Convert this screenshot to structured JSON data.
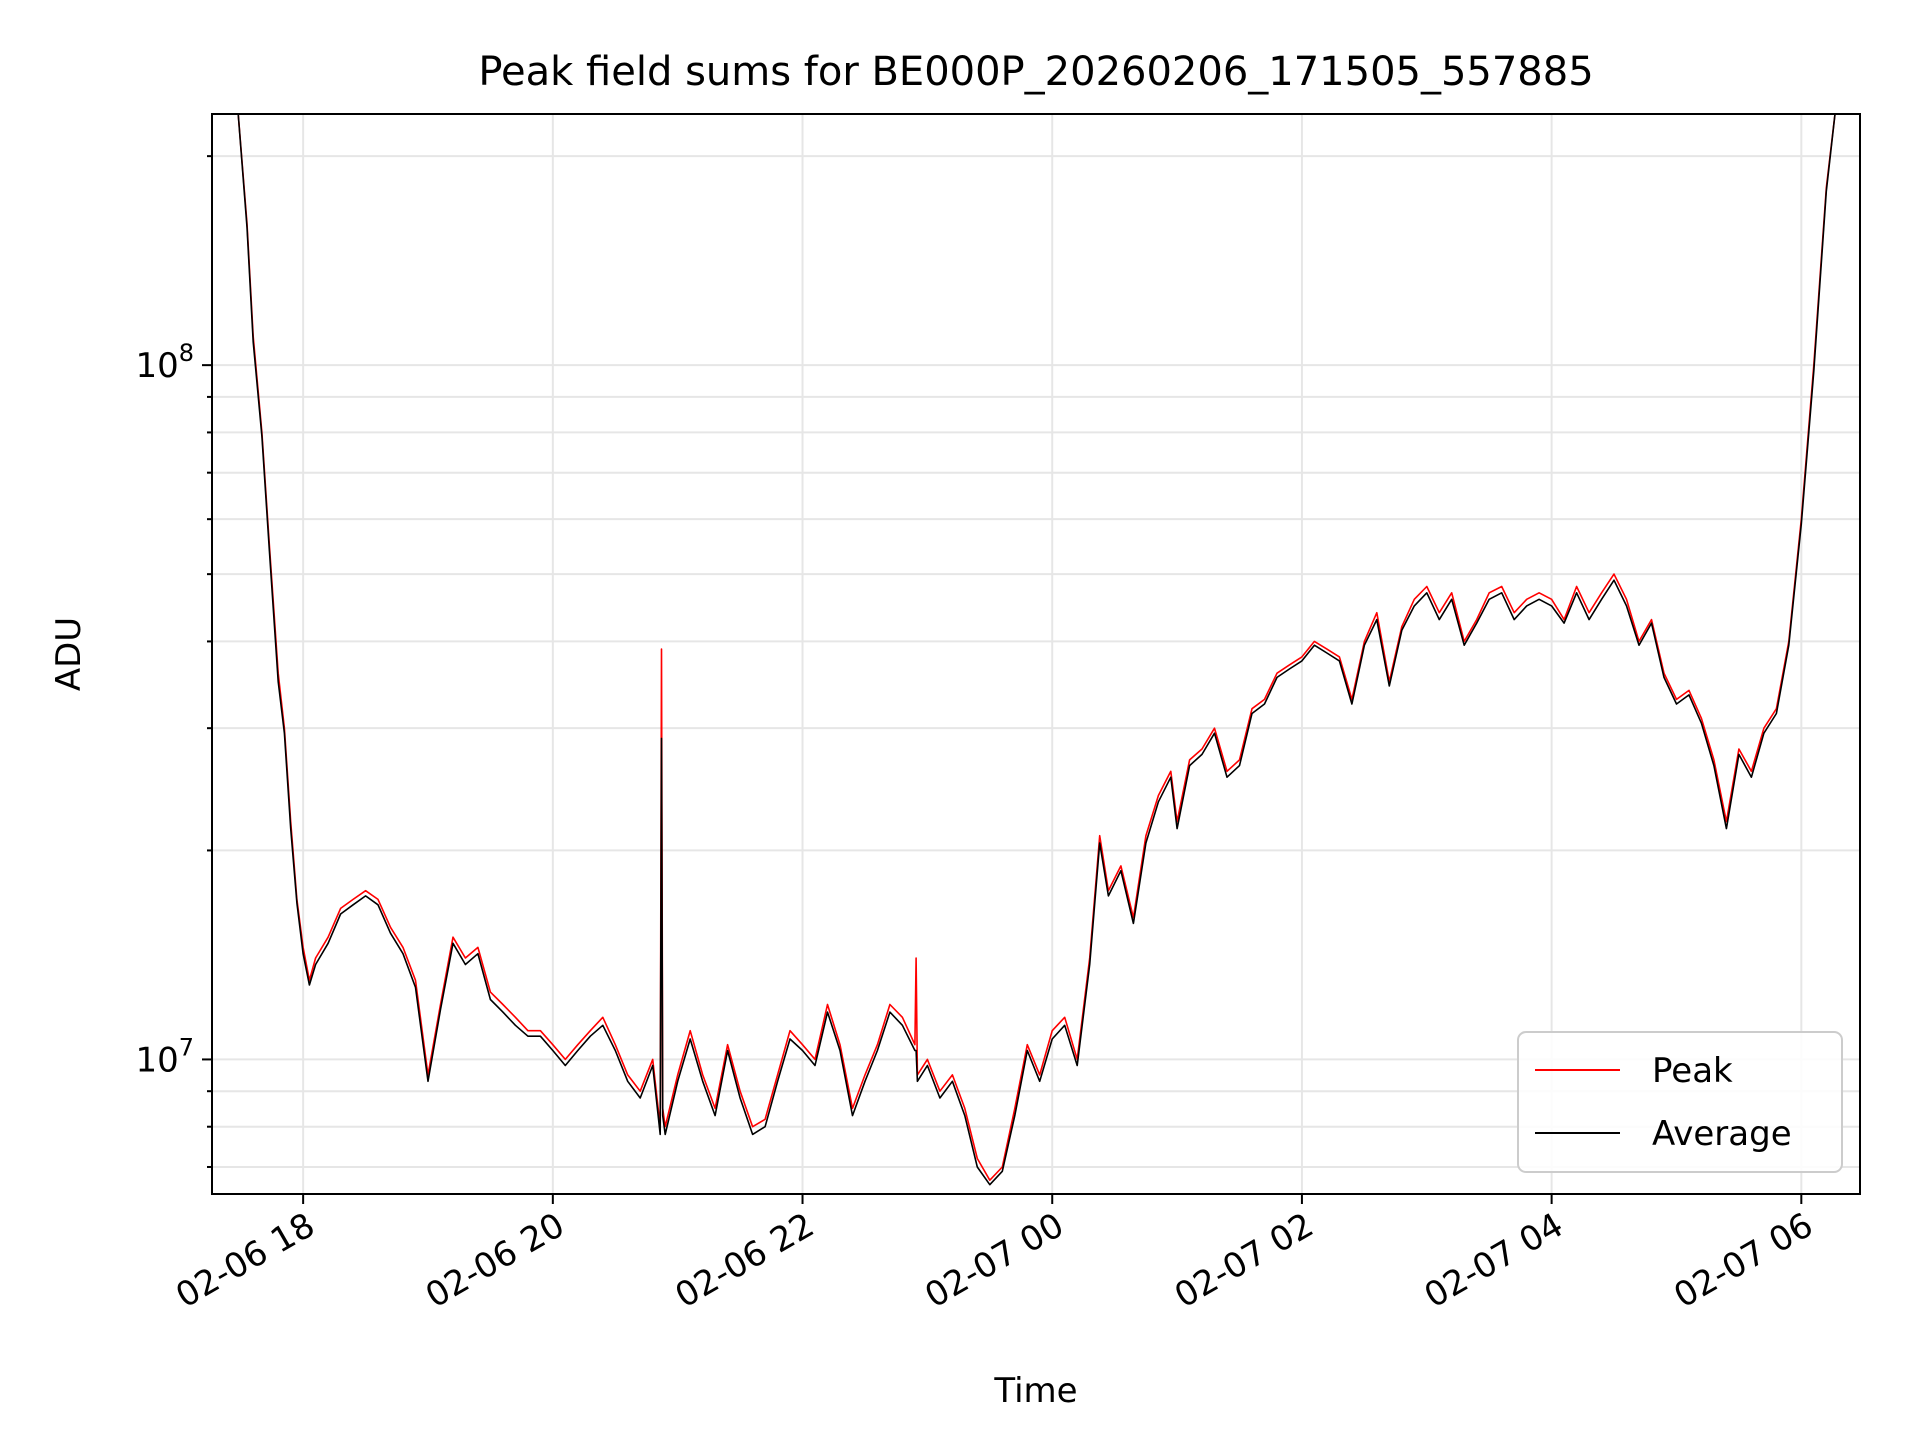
{
  "chart_data": {
    "type": "line",
    "title": "Peak field sums for BE000P_20260206_171505_557885",
    "xlabel": "Time",
    "ylabel": "ADU",
    "yscale": "log",
    "ylim": [
      6400000,
      230000000
    ],
    "xlim_hours": [
      -0.73,
      12.47
    ],
    "x_tick_labels": [
      {
        "label": "02-06 18",
        "hour": 0
      },
      {
        "label": "02-06 20",
        "hour": 2
      },
      {
        "label": "02-06 22",
        "hour": 4
      },
      {
        "label": "02-07 00",
        "hour": 6
      },
      {
        "label": "02-07 02",
        "hour": 8
      },
      {
        "label": "02-07 04",
        "hour": 10
      },
      {
        "label": "02-07 06",
        "hour": 12
      }
    ],
    "y_major_ticks": [
      {
        "base": "10",
        "exp": "7",
        "value": 10000000
      },
      {
        "base": "10",
        "exp": "8",
        "value": 100000000
      }
    ],
    "grid": true,
    "legend_position": "lower-right",
    "series": [
      {
        "name": "Peak",
        "color": "#ff0000",
        "x_hours": [
          -0.52,
          -0.45,
          -0.4,
          -0.33,
          -0.27,
          -0.2,
          -0.15,
          -0.1,
          -0.05,
          0.0,
          0.05,
          0.1,
          0.2,
          0.3,
          0.4,
          0.5,
          0.6,
          0.7,
          0.8,
          0.9,
          1.0,
          1.1,
          1.2,
          1.3,
          1.4,
          1.5,
          1.6,
          1.7,
          1.8,
          1.9,
          2.0,
          2.1,
          2.2,
          2.3,
          2.4,
          2.5,
          2.6,
          2.7,
          2.8,
          2.86,
          2.87,
          2.88,
          2.9,
          3.0,
          3.1,
          3.2,
          3.3,
          3.4,
          3.5,
          3.6,
          3.7,
          3.8,
          3.9,
          4.0,
          4.1,
          4.2,
          4.3,
          4.4,
          4.5,
          4.6,
          4.7,
          4.8,
          4.9,
          4.91,
          4.92,
          5.0,
          5.1,
          5.2,
          5.3,
          5.4,
          5.5,
          5.6,
          5.7,
          5.8,
          5.9,
          6.0,
          6.1,
          6.2,
          6.3,
          6.38,
          6.45,
          6.55,
          6.65,
          6.75,
          6.85,
          6.95,
          7.0,
          7.1,
          7.2,
          7.3,
          7.4,
          7.5,
          7.6,
          7.7,
          7.8,
          7.9,
          8.0,
          8.1,
          8.2,
          8.3,
          8.4,
          8.5,
          8.6,
          8.7,
          8.8,
          8.9,
          9.0,
          9.1,
          9.2,
          9.3,
          9.4,
          9.5,
          9.6,
          9.7,
          9.8,
          9.9,
          10.0,
          10.1,
          10.2,
          10.3,
          10.4,
          10.5,
          10.6,
          10.7,
          10.8,
          10.9,
          11.0,
          11.1,
          11.2,
          11.3,
          11.4,
          11.5,
          11.6,
          11.7,
          11.8,
          11.9,
          12.0,
          12.1,
          12.2,
          12.27
        ],
        "values": [
          230000000,
          160000000,
          110000000,
          80000000,
          55000000,
          36000000,
          30000000,
          22000000,
          17000000,
          14500000,
          13000000,
          14000000,
          15000000,
          16500000,
          17000000,
          17500000,
          17000000,
          15500000,
          14500000,
          13000000,
          9500000,
          12000000,
          15000000,
          14000000,
          14500000,
          12500000,
          12000000,
          11500000,
          11000000,
          11000000,
          10500000,
          10000000,
          10500000,
          11000000,
          11500000,
          10500000,
          9500000,
          9000000,
          10000000,
          8000000,
          39000000,
          8500000,
          8000000,
          9500000,
          11000000,
          9500000,
          8500000,
          10500000,
          9000000,
          8000000,
          8200000,
          9500000,
          11000000,
          10500000,
          10000000,
          12000000,
          10500000,
          8500000,
          9500000,
          10500000,
          12000000,
          11500000,
          10500000,
          14000000,
          9500000,
          10000000,
          9000000,
          9500000,
          8500000,
          7200000,
          6700000,
          7000000,
          8500000,
          10500000,
          9500000,
          11000000,
          11500000,
          10000000,
          14000000,
          21000000,
          17500000,
          19000000,
          16000000,
          21000000,
          24000000,
          26000000,
          22000000,
          27000000,
          28000000,
          30000000,
          26000000,
          27000000,
          32000000,
          33000000,
          36000000,
          37000000,
          38000000,
          40000000,
          39000000,
          38000000,
          33000000,
          40000000,
          44000000,
          35000000,
          42000000,
          46000000,
          48000000,
          44000000,
          47000000,
          40000000,
          43000000,
          47000000,
          48000000,
          44000000,
          46000000,
          47000000,
          46000000,
          43000000,
          48000000,
          44000000,
          47000000,
          50000000,
          46000000,
          40000000,
          43000000,
          36000000,
          33000000,
          34000000,
          31000000,
          27000000,
          22000000,
          28000000,
          26000000,
          30000000,
          32000000,
          40000000,
          60000000,
          100000000,
          180000000,
          230000000
        ]
      },
      {
        "name": "Average",
        "color": "#000000",
        "x_hours": [
          -0.52,
          -0.45,
          -0.4,
          -0.33,
          -0.27,
          -0.2,
          -0.15,
          -0.1,
          -0.05,
          0.0,
          0.05,
          0.1,
          0.2,
          0.3,
          0.4,
          0.5,
          0.6,
          0.7,
          0.8,
          0.9,
          1.0,
          1.1,
          1.2,
          1.3,
          1.4,
          1.5,
          1.6,
          1.7,
          1.8,
          1.9,
          2.0,
          2.1,
          2.2,
          2.3,
          2.4,
          2.5,
          2.6,
          2.7,
          2.8,
          2.86,
          2.87,
          2.88,
          2.9,
          3.0,
          3.1,
          3.2,
          3.3,
          3.4,
          3.5,
          3.6,
          3.7,
          3.8,
          3.9,
          4.0,
          4.1,
          4.2,
          4.3,
          4.4,
          4.5,
          4.6,
          4.7,
          4.8,
          4.9,
          4.91,
          4.92,
          5.0,
          5.1,
          5.2,
          5.3,
          5.4,
          5.5,
          5.6,
          5.7,
          5.8,
          5.9,
          6.0,
          6.1,
          6.2,
          6.3,
          6.38,
          6.45,
          6.55,
          6.65,
          6.75,
          6.85,
          6.95,
          7.0,
          7.1,
          7.2,
          7.3,
          7.4,
          7.5,
          7.6,
          7.7,
          7.8,
          7.9,
          8.0,
          8.1,
          8.2,
          8.3,
          8.4,
          8.5,
          8.6,
          8.7,
          8.8,
          8.9,
          9.0,
          9.1,
          9.2,
          9.3,
          9.4,
          9.5,
          9.6,
          9.7,
          9.8,
          9.9,
          10.0,
          10.1,
          10.2,
          10.3,
          10.4,
          10.5,
          10.6,
          10.7,
          10.8,
          10.9,
          11.0,
          11.1,
          11.2,
          11.3,
          11.4,
          11.5,
          11.6,
          11.7,
          11.8,
          11.9,
          12.0,
          12.1,
          12.2,
          12.27
        ],
        "values": [
          230000000,
          158000000,
          108000000,
          79000000,
          54000000,
          35000000,
          29500000,
          21500000,
          16800000,
          14200000,
          12800000,
          13700000,
          14700000,
          16200000,
          16700000,
          17200000,
          16700000,
          15200000,
          14200000,
          12700000,
          9300000,
          11800000,
          14700000,
          13700000,
          14200000,
          12200000,
          11700000,
          11200000,
          10800000,
          10800000,
          10300000,
          9800000,
          10300000,
          10800000,
          11200000,
          10300000,
          9300000,
          8800000,
          9800000,
          7800000,
          29000000,
          8300000,
          7800000,
          9300000,
          10700000,
          9300000,
          8300000,
          10300000,
          8800000,
          7800000,
          8000000,
          9300000,
          10700000,
          10300000,
          9800000,
          11700000,
          10300000,
          8300000,
          9300000,
          10300000,
          11700000,
          11200000,
          10300000,
          10300000,
          9300000,
          9800000,
          8800000,
          9300000,
          8300000,
          7000000,
          6600000,
          6900000,
          8300000,
          10300000,
          9300000,
          10700000,
          11200000,
          9800000,
          13700000,
          20500000,
          17200000,
          18700000,
          15700000,
          20500000,
          23500000,
          25500000,
          21500000,
          26500000,
          27500000,
          29500000,
          25500000,
          26500000,
          31500000,
          32500000,
          35500000,
          36500000,
          37500000,
          39500000,
          38500000,
          37500000,
          32500000,
          39500000,
          43000000,
          34500000,
          41500000,
          45000000,
          47000000,
          43000000,
          46000000,
          39500000,
          42500000,
          46000000,
          47000000,
          43000000,
          45000000,
          46000000,
          45000000,
          42500000,
          47000000,
          43000000,
          46000000,
          49000000,
          45000000,
          39500000,
          42500000,
          35500000,
          32500000,
          33500000,
          30500000,
          26500000,
          21500000,
          27500000,
          25500000,
          29500000,
          31500000,
          39500000,
          59000000,
          98000000,
          178000000,
          230000000
        ]
      }
    ]
  }
}
